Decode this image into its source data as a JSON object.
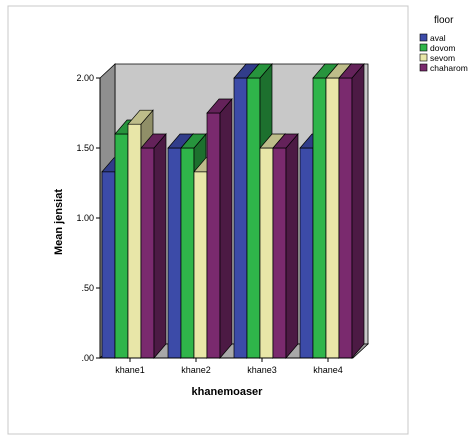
{
  "chart_data": {
    "type": "bar",
    "style": "3d-clustered",
    "xlabel": "khanemoaser",
    "ylabel": "Mean jensiat",
    "categories": [
      "khane1",
      "khane2",
      "khane3",
      "khane4"
    ],
    "ylim": [
      0,
      2.0
    ],
    "yticks": [
      ".00",
      ".50",
      "1.00",
      "1.50",
      "2.00"
    ],
    "legend_title": "floor",
    "legend_position": "top-right",
    "grid": false,
    "series": [
      {
        "name": "aval",
        "color": "#3c4ba8",
        "values": [
          1.33,
          1.5,
          2.0,
          1.5
        ]
      },
      {
        "name": "dovom",
        "color": "#2fb54a",
        "values": [
          1.6,
          1.5,
          2.0,
          2.0
        ]
      },
      {
        "name": "sevom",
        "color": "#e8e6a8",
        "values": [
          1.67,
          1.33,
          1.5,
          2.0
        ]
      },
      {
        "name": "chaharom",
        "color": "#7a2a6e",
        "values": [
          1.5,
          1.75,
          1.5,
          2.0
        ]
      }
    ],
    "colors": {
      "back_wall": "#c8c8c8",
      "side_wall": "#8f8f8f",
      "floor": "#a8a8a8"
    }
  }
}
